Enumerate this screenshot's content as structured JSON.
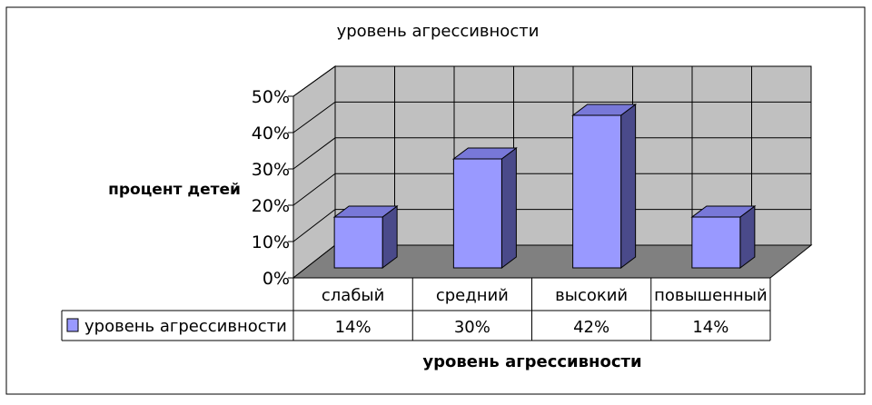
{
  "chart_data": {
    "type": "bar",
    "title": "уровень агрессивности",
    "ylabel": "процент детей",
    "xlabel": "уровень агрессивности",
    "categories": [
      "слабый",
      "средний",
      "высокий",
      "повышенный"
    ],
    "series": [
      {
        "name": "уровень агрессивности",
        "values": [
          14,
          30,
          42,
          14
        ],
        "color": "#9999ff"
      }
    ],
    "data_labels": [
      "14%",
      "30%",
      "42%",
      "14%"
    ],
    "ylim": [
      0,
      50
    ],
    "yticks": [
      "0%",
      "10%",
      "20%",
      "30%",
      "40%",
      "50%"
    ],
    "grid": true,
    "legend": "data-table",
    "colors": {
      "back_wall": "#c0c0c0",
      "floor": "#808080",
      "bar_front": "#9999ff",
      "bar_top": "#7878d8",
      "bar_side": "#4a4a8a"
    }
  }
}
